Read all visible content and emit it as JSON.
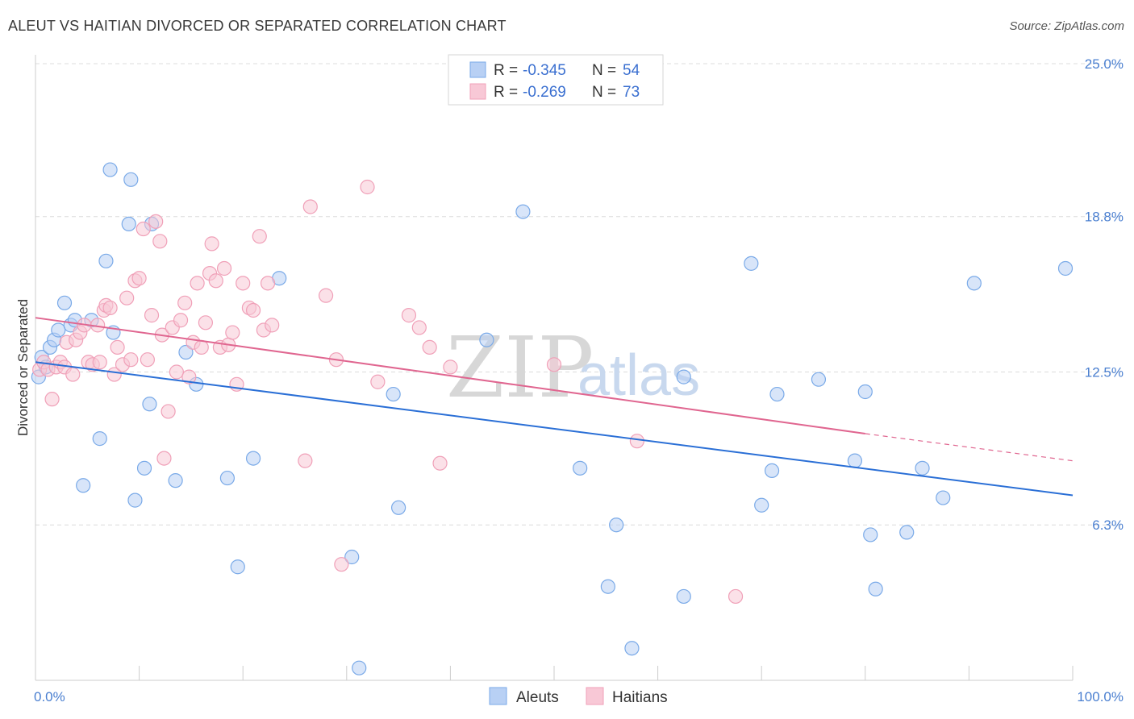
{
  "header": {
    "title": "ALEUT VS HAITIAN DIVORCED OR SEPARATED CORRELATION CHART",
    "source": "Source: ZipAtlas.com"
  },
  "watermark": {
    "zip": "ZIP",
    "atlas": "atlas"
  },
  "legend_top": {
    "rows": [
      {
        "r_label": "R =",
        "r_value": "-0.345",
        "n_label": "N =",
        "n_value": "54"
      },
      {
        "r_label": "R =",
        "r_value": "-0.269",
        "n_label": "N =",
        "n_value": "73"
      }
    ]
  },
  "chart_data": {
    "type": "scatter",
    "title": "ALEUT VS HAITIAN DIVORCED OR SEPARATED CORRELATION CHART",
    "xlabel": "",
    "ylabel": "Divorced or Separated",
    "xlim": [
      0,
      100
    ],
    "ylim": [
      0,
      25
    ],
    "x_tick_labels": [
      "0.0%",
      "100.0%"
    ],
    "y_ticks": [
      6.3,
      12.5,
      18.8,
      25.0
    ],
    "y_tick_labels": [
      "6.3%",
      "12.5%",
      "18.8%",
      "25.0%"
    ],
    "grid": true,
    "legend_position": "bottom-center",
    "series": [
      {
        "name": "Aleuts",
        "color": "#7aaae8",
        "fill": "#b8d0f4",
        "line_color": "#2a6fd6",
        "r": -0.345,
        "n": 54,
        "trend": {
          "x": [
            0,
            100
          ],
          "y": [
            12.9,
            7.5
          ]
        },
        "points": [
          [
            0.3,
            12.3
          ],
          [
            0.6,
            13.1
          ],
          [
            1.0,
            12.7
          ],
          [
            1.4,
            13.5
          ],
          [
            1.8,
            13.8
          ],
          [
            2.2,
            14.2
          ],
          [
            2.8,
            15.3
          ],
          [
            3.4,
            14.4
          ],
          [
            3.8,
            14.6
          ],
          [
            4.6,
            7.9
          ],
          [
            5.4,
            14.6
          ],
          [
            6.2,
            9.8
          ],
          [
            6.8,
            17.0
          ],
          [
            7.2,
            20.7
          ],
          [
            7.5,
            14.1
          ],
          [
            9.0,
            18.5
          ],
          [
            9.2,
            20.3
          ],
          [
            9.6,
            7.3
          ],
          [
            10.5,
            8.6
          ],
          [
            11.0,
            11.2
          ],
          [
            11.2,
            18.5
          ],
          [
            13.5,
            8.1
          ],
          [
            14.5,
            13.3
          ],
          [
            15.5,
            12.0
          ],
          [
            18.5,
            8.2
          ],
          [
            19.5,
            4.6
          ],
          [
            21.0,
            9.0
          ],
          [
            23.5,
            16.3
          ],
          [
            30.5,
            5.0
          ],
          [
            31.2,
            0.5
          ],
          [
            35.0,
            7.0
          ],
          [
            34.5,
            11.6
          ],
          [
            43.5,
            13.8
          ],
          [
            47.0,
            19.0
          ],
          [
            52.5,
            8.6
          ],
          [
            56.0,
            6.3
          ],
          [
            55.2,
            3.8
          ],
          [
            57.5,
            1.3
          ],
          [
            62.5,
            3.4
          ],
          [
            62.5,
            12.3
          ],
          [
            69.0,
            16.9
          ],
          [
            70.0,
            7.1
          ],
          [
            71.0,
            8.5
          ],
          [
            71.5,
            11.6
          ],
          [
            75.5,
            12.2
          ],
          [
            79.0,
            8.9
          ],
          [
            80.0,
            11.7
          ],
          [
            80.5,
            5.9
          ],
          [
            81.0,
            3.7
          ],
          [
            84.0,
            6.0
          ],
          [
            85.5,
            8.6
          ],
          [
            87.5,
            7.4
          ],
          [
            90.5,
            16.1
          ],
          [
            99.3,
            16.7
          ]
        ]
      },
      {
        "name": "Haitians",
        "color": "#f0a0b8",
        "fill": "#f8c8d6",
        "line_color": "#e06690",
        "r": -0.269,
        "n": 73,
        "trend": {
          "x": [
            0,
            80
          ],
          "y": [
            14.7,
            10.0
          ]
        },
        "trend_extension": {
          "x": [
            80,
            100
          ],
          "y": [
            10.0,
            8.9
          ]
        },
        "points": [
          [
            0.4,
            12.6
          ],
          [
            0.8,
            12.9
          ],
          [
            1.2,
            12.6
          ],
          [
            1.6,
            11.4
          ],
          [
            2.0,
            12.7
          ],
          [
            2.4,
            12.9
          ],
          [
            2.8,
            12.7
          ],
          [
            3.0,
            13.7
          ],
          [
            3.6,
            12.4
          ],
          [
            3.9,
            13.8
          ],
          [
            4.3,
            14.1
          ],
          [
            4.7,
            14.4
          ],
          [
            5.1,
            12.9
          ],
          [
            5.5,
            12.8
          ],
          [
            6.0,
            14.4
          ],
          [
            6.2,
            12.9
          ],
          [
            6.6,
            15.0
          ],
          [
            6.8,
            15.2
          ],
          [
            7.2,
            15.1
          ],
          [
            7.6,
            12.4
          ],
          [
            7.9,
            13.5
          ],
          [
            8.4,
            12.8
          ],
          [
            8.8,
            15.5
          ],
          [
            9.2,
            13.0
          ],
          [
            9.6,
            16.2
          ],
          [
            10.0,
            16.3
          ],
          [
            10.4,
            18.3
          ],
          [
            10.8,
            13.0
          ],
          [
            11.2,
            14.8
          ],
          [
            11.6,
            18.6
          ],
          [
            12.0,
            17.8
          ],
          [
            12.2,
            14.0
          ],
          [
            12.4,
            9.0
          ],
          [
            12.8,
            10.9
          ],
          [
            13.2,
            14.3
          ],
          [
            13.6,
            12.5
          ],
          [
            14.0,
            14.6
          ],
          [
            14.4,
            15.3
          ],
          [
            14.8,
            12.3
          ],
          [
            15.2,
            13.7
          ],
          [
            15.6,
            16.1
          ],
          [
            16.0,
            13.5
          ],
          [
            16.4,
            14.5
          ],
          [
            16.8,
            16.5
          ],
          [
            17.0,
            17.7
          ],
          [
            17.4,
            16.2
          ],
          [
            17.8,
            13.5
          ],
          [
            18.2,
            16.7
          ],
          [
            18.6,
            13.6
          ],
          [
            19.0,
            14.1
          ],
          [
            19.4,
            12.0
          ],
          [
            20.0,
            16.1
          ],
          [
            20.6,
            15.1
          ],
          [
            21.0,
            15.0
          ],
          [
            21.6,
            18.0
          ],
          [
            22.0,
            14.2
          ],
          [
            22.4,
            16.1
          ],
          [
            22.8,
            14.4
          ],
          [
            26.0,
            8.9
          ],
          [
            26.5,
            19.2
          ],
          [
            28.0,
            15.6
          ],
          [
            29.0,
            13.0
          ],
          [
            29.5,
            4.7
          ],
          [
            32.0,
            20.0
          ],
          [
            33.0,
            12.1
          ],
          [
            36.0,
            14.8
          ],
          [
            37.0,
            14.3
          ],
          [
            38.0,
            13.5
          ],
          [
            39.0,
            8.8
          ],
          [
            40.0,
            12.7
          ],
          [
            50.0,
            12.8
          ],
          [
            58.0,
            9.7
          ],
          [
            67.5,
            3.4
          ]
        ]
      }
    ]
  }
}
